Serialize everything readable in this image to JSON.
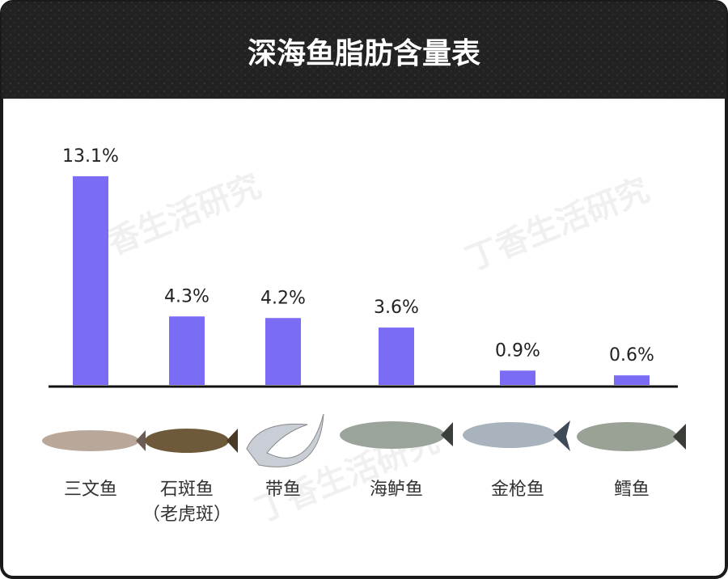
{
  "chart_data": {
    "type": "bar",
    "title": "深海鱼脂肪含量表",
    "categories": [
      "三文鱼",
      "石斑鱼\n（老虎斑）",
      "带鱼",
      "海鲈鱼",
      "金枪鱼",
      "鳕鱼"
    ],
    "values": [
      13.1,
      4.3,
      4.2,
      3.6,
      0.9,
      0.6
    ],
    "value_labels": [
      "13.1%",
      "4.3%",
      "4.2%",
      "3.6%",
      "0.9%",
      "0.6%"
    ],
    "color": "#7b6cf6",
    "watermark": "丁香生活研究"
  }
}
